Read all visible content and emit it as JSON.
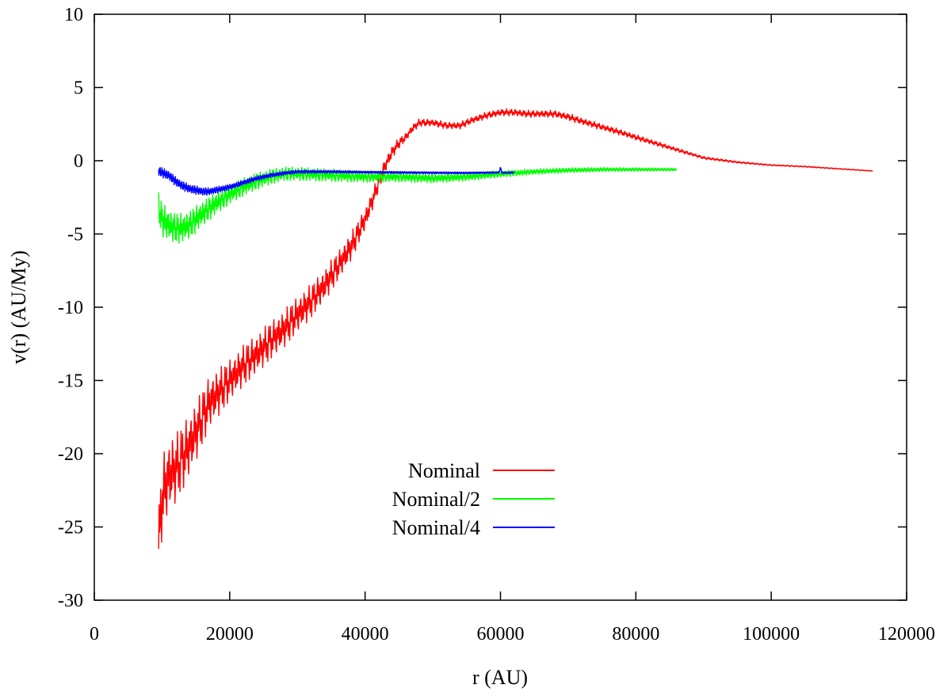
{
  "chart_data": {
    "type": "line",
    "title": "",
    "xlabel": "r (AU)",
    "ylabel": "v(r) (AU/My)",
    "xlim": [
      0,
      120000
    ],
    "ylim": [
      -30,
      10
    ],
    "x_ticks": [
      0,
      20000,
      40000,
      60000,
      80000,
      100000,
      120000
    ],
    "y_ticks": [
      -30,
      -25,
      -20,
      -15,
      -10,
      -5,
      0,
      5,
      10
    ],
    "grid": false,
    "legend_position": "bottom-center",
    "series": [
      {
        "name": "Nominal",
        "color": "#ff0000",
        "noise_amplitude": [
          [
            9500,
            3.0
          ],
          [
            12000,
            2.5
          ],
          [
            16000,
            2.0
          ],
          [
            20000,
            1.5
          ],
          [
            30000,
            1.3
          ],
          [
            38000,
            1.0
          ],
          [
            42000,
            0.6
          ],
          [
            46000,
            0.3
          ],
          [
            50000,
            0.25
          ],
          [
            60000,
            0.25
          ],
          [
            70000,
            0.25
          ],
          [
            80000,
            0.2
          ],
          [
            90000,
            0.1
          ],
          [
            100000,
            0.05
          ],
          [
            115000,
            0.03
          ]
        ],
        "points": [
          [
            9500,
            -26.5
          ],
          [
            10000,
            -23
          ],
          [
            11000,
            -21.5
          ],
          [
            12000,
            -21
          ],
          [
            13000,
            -20.3
          ],
          [
            14000,
            -19.5
          ],
          [
            15000,
            -18.5
          ],
          [
            16000,
            -17.5
          ],
          [
            17000,
            -16.5
          ],
          [
            18000,
            -16
          ],
          [
            19000,
            -15.5
          ],
          [
            20000,
            -15
          ],
          [
            22000,
            -14
          ],
          [
            24000,
            -13.2
          ],
          [
            26000,
            -12.3
          ],
          [
            28000,
            -11.5
          ],
          [
            30000,
            -10.5
          ],
          [
            32000,
            -9.6
          ],
          [
            34000,
            -8.5
          ],
          [
            36000,
            -7.2
          ],
          [
            38000,
            -5.8
          ],
          [
            40000,
            -4.0
          ],
          [
            41000,
            -2.8
          ],
          [
            42000,
            -1.5
          ],
          [
            43000,
            -0.3
          ],
          [
            44000,
            0.6
          ],
          [
            45000,
            1.2
          ],
          [
            46000,
            1.6
          ],
          [
            47000,
            2.2
          ],
          [
            48000,
            2.6
          ],
          [
            50000,
            2.6
          ],
          [
            52000,
            2.4
          ],
          [
            54000,
            2.4
          ],
          [
            56000,
            2.8
          ],
          [
            58000,
            3.1
          ],
          [
            60000,
            3.3
          ],
          [
            62000,
            3.3
          ],
          [
            64000,
            3.2
          ],
          [
            66000,
            3.2
          ],
          [
            68000,
            3.2
          ],
          [
            70000,
            3.0
          ],
          [
            72000,
            2.7
          ],
          [
            75000,
            2.3
          ],
          [
            78000,
            1.9
          ],
          [
            80000,
            1.6
          ],
          [
            85000,
            0.9
          ],
          [
            90000,
            0.2
          ],
          [
            95000,
            -0.1
          ],
          [
            100000,
            -0.3
          ],
          [
            105000,
            -0.4
          ],
          [
            110000,
            -0.55
          ],
          [
            115000,
            -0.7
          ]
        ]
      },
      {
        "name": "Nominal/2",
        "color": "#00ff00",
        "noise_amplitude": [
          [
            9500,
            1.2
          ],
          [
            14000,
            1.0
          ],
          [
            20000,
            0.7
          ],
          [
            28000,
            0.5
          ],
          [
            40000,
            0.4
          ],
          [
            55000,
            0.3
          ],
          [
            65000,
            0.2
          ],
          [
            86000,
            0.1
          ]
        ],
        "points": [
          [
            9500,
            -3.2
          ],
          [
            10000,
            -4.0
          ],
          [
            11000,
            -4.4
          ],
          [
            12000,
            -4.6
          ],
          [
            13000,
            -4.6
          ],
          [
            14000,
            -4.4
          ],
          [
            15000,
            -4.0
          ],
          [
            16000,
            -3.6
          ],
          [
            18000,
            -2.9
          ],
          [
            20000,
            -2.3
          ],
          [
            22000,
            -1.8
          ],
          [
            24000,
            -1.4
          ],
          [
            26000,
            -1.1
          ],
          [
            28000,
            -0.9
          ],
          [
            30000,
            -0.9
          ],
          [
            35000,
            -1.0
          ],
          [
            40000,
            -1.1
          ],
          [
            45000,
            -1.1
          ],
          [
            50000,
            -1.2
          ],
          [
            55000,
            -1.1
          ],
          [
            60000,
            -0.9
          ],
          [
            65000,
            -0.75
          ],
          [
            70000,
            -0.65
          ],
          [
            75000,
            -0.6
          ],
          [
            80000,
            -0.6
          ],
          [
            86000,
            -0.6
          ]
        ]
      },
      {
        "name": "Nominal/4",
        "color": "#0000ff",
        "noise_amplitude": [
          [
            9500,
            0.35
          ],
          [
            15000,
            0.3
          ],
          [
            20000,
            0.2
          ],
          [
            30000,
            0.12
          ],
          [
            40000,
            0.08
          ],
          [
            62000,
            0.06
          ]
        ],
        "points": [
          [
            9500,
            -0.7
          ],
          [
            10000,
            -0.8
          ],
          [
            11000,
            -1.0
          ],
          [
            12000,
            -1.4
          ],
          [
            13000,
            -1.7
          ],
          [
            14000,
            -1.9
          ],
          [
            15000,
            -2.0
          ],
          [
            16000,
            -2.1
          ],
          [
            17000,
            -2.1
          ],
          [
            18000,
            -2.0
          ],
          [
            20000,
            -1.8
          ],
          [
            22000,
            -1.5
          ],
          [
            24000,
            -1.2
          ],
          [
            26000,
            -1.0
          ],
          [
            28000,
            -0.85
          ],
          [
            30000,
            -0.75
          ],
          [
            35000,
            -0.75
          ],
          [
            40000,
            -0.78
          ],
          [
            45000,
            -0.8
          ],
          [
            50000,
            -0.82
          ],
          [
            55000,
            -0.83
          ],
          [
            59800,
            -0.8
          ],
          [
            60000,
            -0.45
          ],
          [
            60200,
            -0.82
          ],
          [
            62000,
            -0.8
          ]
        ]
      }
    ]
  }
}
